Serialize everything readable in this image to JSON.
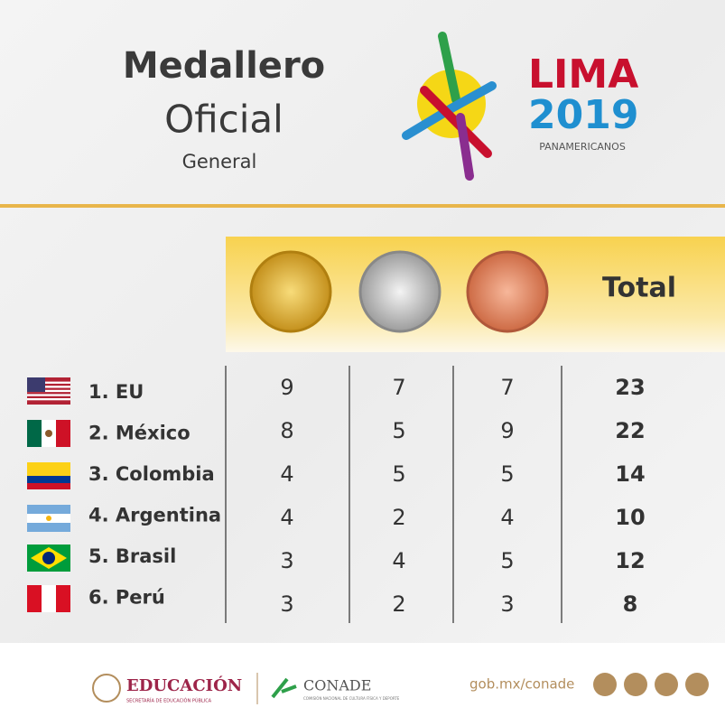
{
  "header": {
    "title_line1": "Medallero",
    "title_line2": "Oficial",
    "subtitle": "General"
  },
  "logo": {
    "name": "LIMA",
    "year": "2019",
    "event": "PANAMERICANOS"
  },
  "table": {
    "total_header": "Total",
    "rows": [
      [
        "1. EU",
        9,
        7,
        7,
        23
      ],
      [
        "2. México",
        8,
        5,
        9,
        22
      ],
      [
        "3. Colombia",
        4,
        5,
        5,
        14
      ],
      [
        "4. Argentina",
        4,
        2,
        4,
        10
      ],
      [
        "5. Brasil",
        3,
        4,
        5,
        12
      ],
      [
        "6. Perú",
        3,
        2,
        3,
        8
      ]
    ]
  },
  "footer": {
    "education": "EDUCACIÓN",
    "education_sub": "SECRETARÍA DE EDUCACIÓN PÚBLICA",
    "conade": "CONADE",
    "conade_sub": "COMISIÓN NACIONAL DE CULTURA FÍSICA Y DEPORTE",
    "website": "gob.mx/conade"
  }
}
